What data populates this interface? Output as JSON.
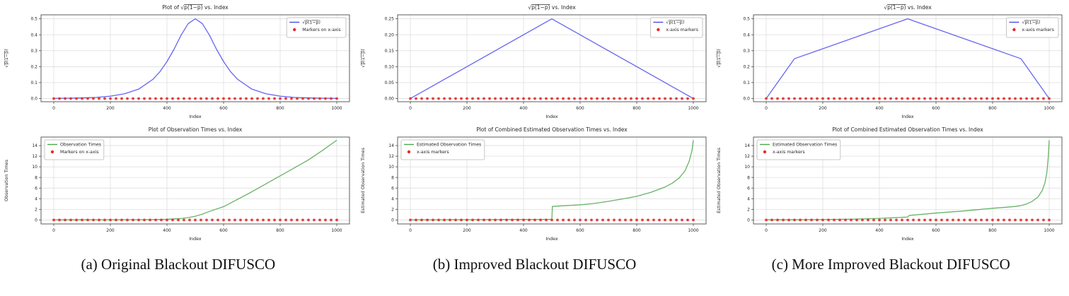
{
  "page": {
    "background": "#ffffff"
  },
  "captions": [
    {
      "label": "(a) Original Blackout DIFUSCO"
    },
    {
      "label": "(b) Improved Blackout DIFUSCO"
    },
    {
      "label": "(c) More Improved Blackout DIFUSCO"
    }
  ],
  "colors": {
    "blue": "#4a4af0",
    "green": "#4da64d",
    "red": "#e62b2b",
    "grid": "#d9d9d9",
    "spine": "#4d4d4d",
    "text": "#262626",
    "legend_border": "#b8b8b8",
    "plot_bg": "#ffffff"
  },
  "chart_data": [
    {
      "id": "a_top",
      "type": "line",
      "title": "Plot of √p(1−p) vs. Index",
      "xlabel": "Index",
      "ylabel": "√p(1−p)",
      "xlim": [
        -45,
        1045
      ],
      "ylim": [
        -0.02,
        0.525
      ],
      "xticks": [
        0,
        200,
        400,
        600,
        800,
        1000
      ],
      "xtick_labels": [
        "0",
        "200",
        "400",
        "600",
        "800",
        "1000"
      ],
      "yticks": [
        0.0,
        0.1,
        0.2,
        0.3,
        0.4,
        0.5
      ],
      "ytick_labels": [
        "0.0",
        "0.1",
        "0.2",
        "0.3",
        "0.4",
        "0.5"
      ],
      "grid": true,
      "legend": {
        "position": "upper-right",
        "entries": [
          {
            "glyph": "line",
            "color_key": "blue",
            "label": "√p(1−p)"
          },
          {
            "glyph": "dot",
            "color_key": "red",
            "label": "Markers on x-axis"
          }
        ]
      },
      "series": [
        {
          "name": "√p(1−p)",
          "color_key": "blue",
          "points": [
            [
              0,
              0.001
            ],
            [
              50,
              0.002
            ],
            [
              100,
              0.004
            ],
            [
              150,
              0.007
            ],
            [
              200,
              0.015
            ],
            [
              250,
              0.03
            ],
            [
              300,
              0.059
            ],
            [
              350,
              0.12
            ],
            [
              375,
              0.168
            ],
            [
              400,
              0.232
            ],
            [
              425,
              0.309
            ],
            [
              450,
              0.398
            ],
            [
              475,
              0.47
            ],
            [
              500,
              0.5
            ],
            [
              525,
              0.47
            ],
            [
              550,
              0.398
            ],
            [
              575,
              0.309
            ],
            [
              600,
              0.232
            ],
            [
              625,
              0.168
            ],
            [
              650,
              0.12
            ],
            [
              700,
              0.059
            ],
            [
              750,
              0.03
            ],
            [
              800,
              0.015
            ],
            [
              850,
              0.007
            ],
            [
              900,
              0.004
            ],
            [
              950,
              0.002
            ],
            [
              1000,
              0.001
            ]
          ]
        }
      ],
      "x_markers": {
        "color_key": "red",
        "from": 0,
        "to": 1000,
        "step": 20,
        "y": 0
      }
    },
    {
      "id": "a_bottom",
      "type": "line",
      "title": "Plot of Observation Times vs. Index",
      "xlabel": "Index",
      "ylabel": "Observation Times",
      "xlim": [
        -45,
        1045
      ],
      "ylim": [
        -0.75,
        15.6
      ],
      "xticks": [
        0,
        200,
        400,
        600,
        800,
        1000
      ],
      "xtick_labels": [
        "0",
        "200",
        "400",
        "600",
        "800",
        "1000"
      ],
      "yticks": [
        0,
        2,
        4,
        6,
        8,
        10,
        12,
        14
      ],
      "ytick_labels": [
        "0",
        "2",
        "4",
        "6",
        "8",
        "10",
        "12",
        "14"
      ],
      "grid": true,
      "legend": {
        "position": "upper-left",
        "entries": [
          {
            "glyph": "line",
            "color_key": "green",
            "label": "Observation Times"
          },
          {
            "glyph": "dot",
            "color_key": "red",
            "label": "Markers on x-axis"
          }
        ]
      },
      "series": [
        {
          "name": "Observation Times",
          "color_key": "green",
          "points": [
            [
              0,
              0.02
            ],
            [
              100,
              0.02
            ],
            [
              200,
              0.03
            ],
            [
              300,
              0.05
            ],
            [
              350,
              0.07
            ],
            [
              400,
              0.12
            ],
            [
              450,
              0.28
            ],
            [
              475,
              0.45
            ],
            [
              500,
              0.7
            ],
            [
              525,
              1.1
            ],
            [
              550,
              1.6
            ],
            [
              600,
              2.5
            ],
            [
              650,
              3.9
            ],
            [
              700,
              5.3
            ],
            [
              750,
              6.8
            ],
            [
              800,
              8.3
            ],
            [
              850,
              9.8
            ],
            [
              900,
              11.3
            ],
            [
              950,
              13.1
            ],
            [
              1000,
              15.0
            ]
          ]
        }
      ],
      "x_markers": {
        "color_key": "red",
        "from": 0,
        "to": 1000,
        "step": 20,
        "y": 0
      }
    },
    {
      "id": "b_top",
      "type": "line",
      "title": "√p(1−p) vs. Index",
      "xlabel": "Index",
      "ylabel": "√p(1−p)",
      "xlim": [
        -45,
        1045
      ],
      "ylim": [
        -0.01,
        0.2625
      ],
      "xticks": [
        0,
        200,
        400,
        600,
        800,
        1000
      ],
      "xtick_labels": [
        "0",
        "200",
        "400",
        "600",
        "800",
        "1000"
      ],
      "yticks": [
        0.0,
        0.05,
        0.1,
        0.15,
        0.2,
        0.25
      ],
      "ytick_labels": [
        "0.00",
        "0.05",
        "0.10",
        "0.15",
        "0.20",
        "0.25"
      ],
      "grid": true,
      "legend": {
        "position": "upper-right",
        "entries": [
          {
            "glyph": "line",
            "color_key": "blue",
            "label": "√p(1−p)"
          },
          {
            "glyph": "dot",
            "color_key": "red",
            "label": "x-axis markers"
          }
        ]
      },
      "series": [
        {
          "name": "√p(1−p)",
          "color_key": "blue",
          "points": [
            [
              0,
              0
            ],
            [
              500,
              0.25
            ],
            [
              1000,
              0
            ]
          ]
        }
      ],
      "x_markers": {
        "color_key": "red",
        "from": 0,
        "to": 1000,
        "step": 20,
        "y": 0
      }
    },
    {
      "id": "b_bottom",
      "type": "line",
      "title": "Plot of Combined Estimated Observation Times vs. Index",
      "xlabel": "Index",
      "ylabel": "Estimated Observation Times",
      "xlim": [
        -45,
        1045
      ],
      "ylim": [
        -0.75,
        15.6
      ],
      "xticks": [
        0,
        200,
        400,
        600,
        800,
        1000
      ],
      "xtick_labels": [
        "0",
        "200",
        "400",
        "600",
        "800",
        "1000"
      ],
      "yticks": [
        0,
        2,
        4,
        6,
        8,
        10,
        12,
        14
      ],
      "ytick_labels": [
        "0",
        "2",
        "4",
        "6",
        "8",
        "10",
        "12",
        "14"
      ],
      "grid": true,
      "legend": {
        "position": "upper-left",
        "entries": [
          {
            "glyph": "line",
            "color_key": "green",
            "label": "Estimated Observation Times"
          },
          {
            "glyph": "dot",
            "color_key": "red",
            "label": "x-axis markers"
          }
        ]
      },
      "series": [
        {
          "name": "Estimated Observation Times",
          "color_key": "green",
          "points": [
            [
              0,
              0.02
            ],
            [
              100,
              0.03
            ],
            [
              200,
              0.05
            ],
            [
              300,
              0.07
            ],
            [
              400,
              0.09
            ],
            [
              460,
              0.1
            ],
            [
              500,
              0.12
            ],
            [
              502,
              2.55
            ],
            [
              550,
              2.7
            ],
            [
              600,
              2.85
            ],
            [
              650,
              3.1
            ],
            [
              700,
              3.5
            ],
            [
              750,
              3.95
            ],
            [
              800,
              4.45
            ],
            [
              850,
              5.2
            ],
            [
              900,
              6.2
            ],
            [
              925,
              6.9
            ],
            [
              950,
              7.9
            ],
            [
              970,
              9.2
            ],
            [
              985,
              11.0
            ],
            [
              995,
              13.0
            ],
            [
              1000,
              15.0
            ]
          ]
        }
      ],
      "x_markers": {
        "color_key": "red",
        "from": 0,
        "to": 1000,
        "step": 20,
        "y": 0
      }
    },
    {
      "id": "c_top",
      "type": "line",
      "title": "√p(1−p) vs. Index",
      "xlabel": "Index",
      "ylabel": "√p(1−p)",
      "xlim": [
        -45,
        1045
      ],
      "ylim": [
        -0.02,
        0.525
      ],
      "xticks": [
        0,
        200,
        400,
        600,
        800,
        1000
      ],
      "xtick_labels": [
        "0",
        "200",
        "400",
        "600",
        "800",
        "1000"
      ],
      "yticks": [
        0.0,
        0.1,
        0.2,
        0.3,
        0.4,
        0.5
      ],
      "ytick_labels": [
        "0.0",
        "0.1",
        "0.2",
        "0.3",
        "0.4",
        "0.5"
      ],
      "grid": true,
      "legend": {
        "position": "upper-right",
        "entries": [
          {
            "glyph": "line",
            "color_key": "blue",
            "label": "√p(1−p)"
          },
          {
            "glyph": "dot",
            "color_key": "red",
            "label": "x-axis markers"
          }
        ]
      },
      "series": [
        {
          "name": "√p(1−p)",
          "color_key": "blue",
          "points": [
            [
              0,
              0
            ],
            [
              100,
              0.25
            ],
            [
              500,
              0.5
            ],
            [
              900,
              0.25
            ],
            [
              1000,
              0
            ]
          ]
        }
      ],
      "x_markers": {
        "color_key": "red",
        "from": 0,
        "to": 1000,
        "step": 20,
        "y": 0
      }
    },
    {
      "id": "c_bottom",
      "type": "line",
      "title": "Plot of Combined Estimated Observation Times vs. Index",
      "xlabel": "Index",
      "ylabel": "Estimated Observation Times",
      "xlim": [
        -45,
        1045
      ],
      "ylim": [
        -0.75,
        15.6
      ],
      "xticks": [
        0,
        200,
        400,
        600,
        800,
        1000
      ],
      "xtick_labels": [
        "0",
        "200",
        "400",
        "600",
        "800",
        "1000"
      ],
      "yticks": [
        0,
        2,
        4,
        6,
        8,
        10,
        12,
        14
      ],
      "ytick_labels": [
        "0",
        "2",
        "4",
        "6",
        "8",
        "10",
        "12",
        "14"
      ],
      "grid": true,
      "legend": {
        "position": "upper-left",
        "entries": [
          {
            "glyph": "line",
            "color_key": "green",
            "label": "Estimated Observation Times"
          },
          {
            "glyph": "dot",
            "color_key": "red",
            "label": "x-axis markers"
          }
        ]
      },
      "series": [
        {
          "name": "Estimated Observation Times",
          "color_key": "green",
          "points": [
            [
              0,
              0.02
            ],
            [
              100,
              0.04
            ],
            [
              200,
              0.08
            ],
            [
              300,
              0.15
            ],
            [
              400,
              0.3
            ],
            [
              450,
              0.42
            ],
            [
              490,
              0.52
            ],
            [
              500,
              0.55
            ],
            [
              505,
              0.85
            ],
            [
              550,
              1.05
            ],
            [
              600,
              1.3
            ],
            [
              650,
              1.5
            ],
            [
              700,
              1.7
            ],
            [
              750,
              1.95
            ],
            [
              800,
              2.2
            ],
            [
              850,
              2.4
            ],
            [
              880,
              2.55
            ],
            [
              900,
              2.7
            ],
            [
              920,
              3.0
            ],
            [
              940,
              3.5
            ],
            [
              960,
              4.3
            ],
            [
              975,
              5.5
            ],
            [
              985,
              7.0
            ],
            [
              992,
              9.0
            ],
            [
              997,
              12.0
            ],
            [
              1000,
              15.0
            ]
          ]
        }
      ],
      "x_markers": {
        "color_key": "red",
        "from": 0,
        "to": 1000,
        "step": 20,
        "y": 0
      }
    }
  ]
}
